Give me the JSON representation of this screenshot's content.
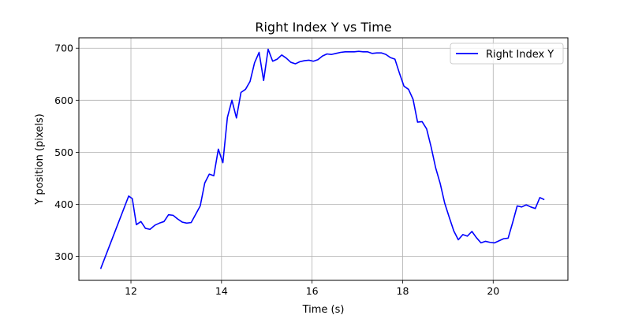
{
  "chart_data": {
    "type": "line",
    "title": "Right Index Y vs Time",
    "xlabel": "Time (s)",
    "ylabel": "Y position (pixels)",
    "xlim": [
      10.85,
      21.65
    ],
    "ylim": [
      254,
      720
    ],
    "xticks": [
      12,
      14,
      16,
      18,
      20
    ],
    "yticks": [
      300,
      400,
      500,
      600,
      700
    ],
    "grid": true,
    "legend_position": "top-right",
    "series": [
      {
        "name": "Right Index Y",
        "color": "#0000ff",
        "x": [
          11.33,
          11.95,
          12.03,
          12.12,
          12.22,
          12.32,
          12.42,
          12.53,
          12.63,
          12.73,
          12.83,
          12.93,
          13.03,
          13.13,
          13.23,
          13.33,
          13.53,
          13.63,
          13.73,
          13.83,
          13.93,
          14.03,
          14.13,
          14.23,
          14.33,
          14.43,
          14.53,
          14.63,
          14.73,
          14.83,
          14.93,
          15.03,
          15.13,
          15.23,
          15.33,
          15.43,
          15.53,
          15.63,
          15.73,
          15.83,
          15.93,
          16.03,
          16.13,
          16.23,
          16.33,
          16.43,
          16.53,
          16.63,
          16.73,
          16.83,
          16.93,
          17.03,
          17.13,
          17.23,
          17.33,
          17.43,
          17.53,
          17.63,
          17.73,
          17.83,
          17.93,
          18.03,
          18.13,
          18.23,
          18.33,
          18.43,
          18.53,
          18.63,
          18.73,
          18.83,
          18.93,
          19.03,
          19.13,
          19.23,
          19.33,
          19.43,
          19.53,
          19.63,
          19.73,
          19.83,
          19.93,
          20.03,
          20.13,
          20.23,
          20.33,
          20.43,
          20.53,
          20.63,
          20.73,
          20.83,
          20.93,
          21.03,
          21.13
        ],
        "values": [
          276,
          416,
          411,
          361,
          367,
          354,
          352,
          360,
          364,
          367,
          380,
          379,
          372,
          366,
          364,
          365,
          397,
          441,
          458,
          455,
          506,
          480,
          567,
          600,
          566,
          615,
          621,
          636,
          672,
          692,
          638,
          698,
          675,
          679,
          687,
          681,
          673,
          670,
          674,
          676,
          677,
          675,
          678,
          685,
          689,
          688,
          690,
          692,
          693,
          693,
          693,
          694,
          693,
          693,
          690,
          691,
          691,
          688,
          682,
          679,
          652,
          627,
          621,
          602,
          558,
          559,
          545,
          510,
          470,
          440,
          402,
          375,
          349,
          332,
          342,
          339,
          348,
          336,
          326,
          329,
          327,
          326,
          330,
          334,
          335,
          365,
          397,
          395,
          399,
          395,
          392,
          413,
          409
        ]
      }
    ]
  }
}
